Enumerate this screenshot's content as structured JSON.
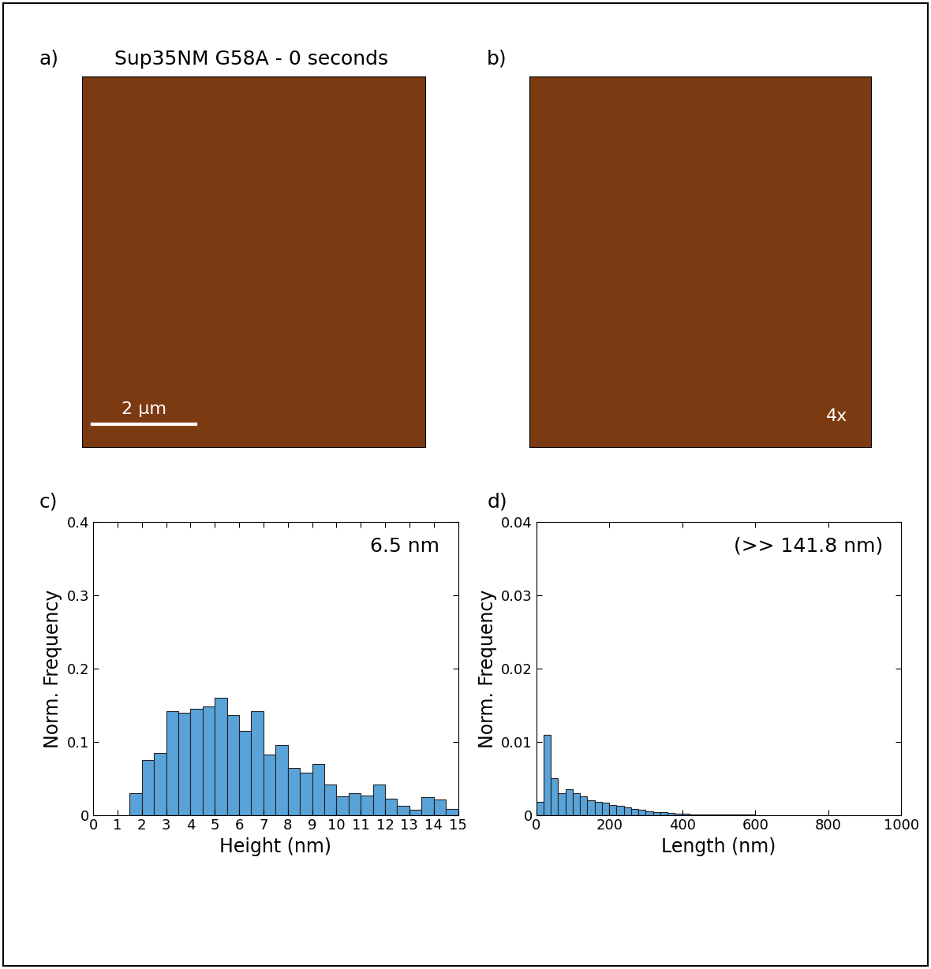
{
  "images": [
    {
      "panel_label": "a)",
      "title": "Sup35NM G58A - 0 seconds",
      "scale_bar": "2 µm"
    },
    {
      "panel_label": "b)",
      "annotation": "4x"
    }
  ],
  "chart_data": [
    {
      "type": "histogram",
      "panel_label": "c)",
      "annotation": "6.5 nm",
      "x_label": "Height (nm)",
      "y_label": "Norm. Frequency",
      "color": "#5aa3d8",
      "bins": [
        1.5,
        2,
        2.5,
        3,
        3.5,
        4,
        4.5,
        5,
        5.5,
        6,
        6.5,
        7,
        7.5,
        8,
        8.5,
        9,
        9.5,
        10,
        10.5,
        11,
        11.5,
        12,
        12.5,
        13,
        13.5,
        14,
        14.5,
        15
      ],
      "counts": [
        0.03,
        0.075,
        0.085,
        0.142,
        0.14,
        0.145,
        0.148,
        0.16,
        0.136,
        0.115,
        0.142,
        0.083,
        0.095,
        0.064,
        0.058,
        0.07,
        0.042,
        0.025,
        0.03,
        0.027,
        0.042,
        0.022,
        0.013,
        0.007,
        0.024,
        0.021,
        0.008
      ],
      "xlim": [
        0,
        15
      ],
      "xticks": [
        0,
        1,
        2,
        3,
        4,
        5,
        6,
        7,
        8,
        9,
        10,
        11,
        12,
        13,
        14,
        15
      ],
      "ylim": [
        0,
        0.4
      ],
      "yticks": [
        0,
        0.1,
        0.2,
        0.3,
        0.4
      ]
    },
    {
      "type": "histogram",
      "panel_label": "d)",
      "annotation": "(>> 141.8 nm)",
      "x_label": "Length (nm)",
      "y_label": "Norm. Frequency",
      "color": "#5aa3d8",
      "bins": [
        0,
        20,
        40,
        60,
        80,
        100,
        120,
        140,
        160,
        180,
        200,
        220,
        240,
        260,
        280,
        300,
        320,
        340,
        360,
        380,
        400,
        420,
        440,
        460,
        480,
        500,
        520,
        540,
        560,
        580,
        600
      ],
      "counts": [
        0.0018,
        0.011,
        0.005,
        0.003,
        0.0035,
        0.003,
        0.0025,
        0.002,
        0.0018,
        0.0017,
        0.0014,
        0.0012,
        0.001,
        0.0008,
        0.0007,
        0.0005,
        0.0004,
        0.0004,
        0.0003,
        0.0002,
        0.00015,
        0.0001,
        0.0001,
        5e-05,
        5e-05,
        3e-05,
        3e-05,
        2e-05,
        0.0001,
        5e-05
      ],
      "xlim": [
        0,
        1000
      ],
      "xticks": [
        0,
        200,
        400,
        600,
        800,
        1000
      ],
      "ylim": [
        0,
        0.04
      ],
      "yticks": [
        0,
        0.01,
        0.02,
        0.03,
        0.04
      ]
    }
  ]
}
